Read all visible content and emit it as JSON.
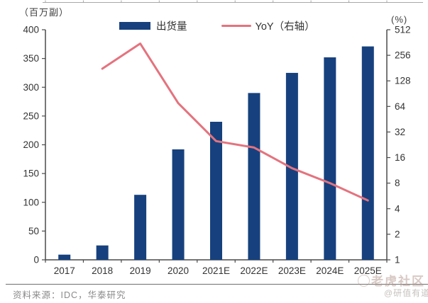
{
  "header": {
    "left_axis_unit": "（百万副）",
    "right_axis_unit": "(%)"
  },
  "legend": {
    "bar_label": "出货量",
    "line_label": "YoY（右轴）"
  },
  "colors": {
    "bar": "#17417E",
    "line": "#E4737E",
    "axis": "#4a4a4a",
    "tick_text": "#333333"
  },
  "chart_data": {
    "type": "bar",
    "subtype": "combo bar + line (dual axis)",
    "categories": [
      "2017",
      "2018",
      "2019",
      "2020",
      "2021E",
      "2022E",
      "2023E",
      "2024E",
      "2025E"
    ],
    "series": [
      {
        "name": "出货量",
        "type": "bar",
        "axis": "left",
        "unit": "百万副",
        "values": [
          9,
          25,
          113,
          192,
          240,
          290,
          325,
          352,
          371
        ]
      },
      {
        "name": "YoY（右轴）",
        "type": "line",
        "axis": "right",
        "unit": "%",
        "values": [
          null,
          178,
          352,
          70,
          25,
          21,
          12,
          8,
          5
        ]
      }
    ],
    "left_axis": {
      "label": "（百万副）",
      "range": [
        0,
        400
      ],
      "ticks": [
        0,
        50,
        100,
        150,
        200,
        250,
        300,
        350,
        400
      ],
      "scale": "linear"
    },
    "right_axis": {
      "label": "(%)",
      "range": [
        1,
        512
      ],
      "ticks": [
        512,
        256,
        128,
        64,
        32,
        16,
        8,
        4,
        2,
        1
      ],
      "scale": "log2"
    },
    "grid": false,
    "legend_position": "top-center",
    "title": ""
  },
  "footer": {
    "source": "资料来源：IDC，华泰研究"
  },
  "watermark": {
    "community": "老虎社区",
    "handle": "@研值有道"
  }
}
